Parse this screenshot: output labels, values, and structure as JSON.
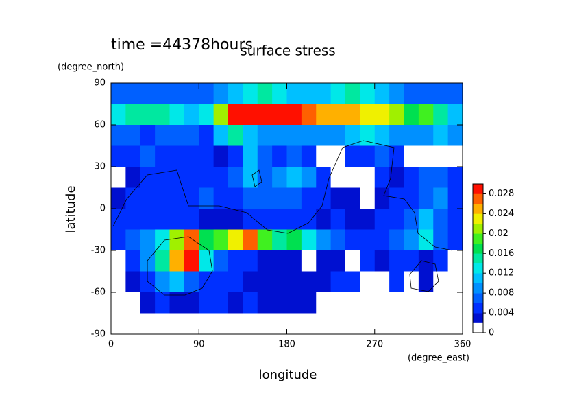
{
  "chart_data": {
    "type": "contour",
    "title": "surface stress",
    "subtitle": "time =44378hours",
    "x_label": "longitude",
    "x_unit": "(degree_east)",
    "y_label": "latitude",
    "y_unit": "(degree_north)",
    "x": [
      7.5,
      22.5,
      37.5,
      52.5,
      67.5,
      82.5,
      97.5,
      112.5,
      127.5,
      142.5,
      157.5,
      172.5,
      187.5,
      202.5,
      217.5,
      232.5,
      247.5,
      262.5,
      277.5,
      292.5,
      307.5,
      322.5,
      337.5,
      352.5
    ],
    "y": [
      82.5,
      67.5,
      52.5,
      37.5,
      22.5,
      7.5,
      -7.5,
      -22.5,
      -37.5,
      -52.5,
      -67.5,
      -82.5
    ],
    "z": [
      [
        0.006,
        0.007,
        0.007,
        0.007,
        0.007,
        0.007,
        0.007,
        0.008,
        0.01,
        0.012,
        0.014,
        0.012,
        0.01,
        0.01,
        0.01,
        0.012,
        0.014,
        0.012,
        0.01,
        0.008,
        0.007,
        0.007,
        0.006,
        0.006
      ],
      [
        0.012,
        0.014,
        0.014,
        0.014,
        0.012,
        0.01,
        0.012,
        0.02,
        0.03,
        0.032,
        0.032,
        0.03,
        0.028,
        0.026,
        0.024,
        0.024,
        0.024,
        0.022,
        0.022,
        0.02,
        0.016,
        0.018,
        0.014,
        0.01
      ],
      [
        0.006,
        0.006,
        0.005,
        0.006,
        0.006,
        0.006,
        0.005,
        0.01,
        0.014,
        0.01,
        0.008,
        0.008,
        0.008,
        0.008,
        0.008,
        0.009,
        0.01,
        0.012,
        0.01,
        0.008,
        0.008,
        0.008,
        0.01,
        0.008
      ],
      [
        0.005,
        0.005,
        0.006,
        0.005,
        0.004,
        0.004,
        0.004,
        0.003,
        0.004,
        0.01,
        0.006,
        0.005,
        0.006,
        0.004,
        0,
        0,
        0.004,
        0.004,
        0.006,
        0.004,
        0,
        0,
        0,
        0
      ],
      [
        0,
        0.003,
        0.004,
        0.005,
        0.005,
        0.005,
        0.004,
        0.005,
        0.006,
        0.01,
        0.006,
        0.008,
        0.01,
        0.008,
        0.004,
        0,
        0,
        0,
        0.004,
        0.003,
        0.004,
        0.006,
        0.006,
        0.004
      ],
      [
        0.003,
        0.004,
        0.004,
        0.004,
        0.005,
        0.005,
        0.006,
        0.005,
        0.005,
        0.006,
        0.007,
        0.007,
        0.006,
        0.005,
        0.004,
        0.003,
        0.003,
        0,
        0.002,
        0.004,
        0.005,
        0.006,
        0.008,
        0.005
      ],
      [
        0.004,
        0.004,
        0.004,
        0.004,
        0.005,
        0.004,
        0.003,
        0.002,
        0.003,
        0.004,
        0.005,
        0.005,
        0.005,
        0.005,
        0.003,
        0.004,
        0.003,
        0.003,
        0.004,
        0.004,
        0.006,
        0.01,
        0.006,
        0.004
      ],
      [
        0.004,
        0.006,
        0.008,
        0.012,
        0.02,
        0.026,
        0.016,
        0.018,
        0.022,
        0.026,
        0.018,
        0.014,
        0.016,
        0.012,
        0.008,
        0.006,
        0.004,
        0.004,
        0.005,
        0.006,
        0.008,
        0.012,
        0.006,
        0.004
      ],
      [
        0,
        0.004,
        0.008,
        0.014,
        0.024,
        0.03,
        0.012,
        0.006,
        0.004,
        0.004,
        0.003,
        0.003,
        0.002,
        0,
        0.003,
        0.003,
        0,
        0.004,
        0.003,
        0.004,
        0.004,
        0.003,
        0.004,
        0
      ],
      [
        0,
        0.002,
        0.004,
        0.008,
        0.01,
        0.006,
        0.005,
        0.004,
        0.004,
        0.003,
        0.003,
        0.002,
        0.003,
        0.003,
        0.003,
        0.004,
        0.004,
        0,
        0,
        0.004,
        0,
        0.003,
        0,
        0
      ],
      [
        0,
        0,
        0.003,
        0.004,
        0.003,
        0.003,
        0.004,
        0.004,
        0.003,
        0.004,
        0.003,
        0.003,
        0.003,
        0.002,
        0,
        0,
        0,
        0,
        0,
        0,
        0,
        0,
        0,
        0
      ],
      [
        0,
        0,
        0,
        0,
        0,
        0,
        0,
        0,
        0,
        0,
        0,
        0,
        0,
        0,
        0,
        0,
        0,
        0,
        0,
        0,
        0,
        0,
        0,
        0
      ]
    ],
    "xlim": [
      0,
      360
    ],
    "ylim": [
      -90,
      90
    ],
    "xticks": [
      0,
      90,
      180,
      270,
      360
    ],
    "yticks": [
      -90,
      -60,
      -30,
      0,
      30,
      60,
      90
    ],
    "clim": [
      0,
      0.03
    ],
    "cticks": [
      0,
      0.004,
      0.008,
      0.012,
      0.016,
      0.02,
      0.024,
      0.028
    ],
    "colors": [
      "#ffffff",
      "#0010d0",
      "#0030ff",
      "#0060ff",
      "#0090ff",
      "#00c0ff",
      "#00e8e8",
      "#00e8a0",
      "#00e050",
      "#40f020",
      "#a0f000",
      "#f0f000",
      "#ffb000",
      "#ff6000",
      "#ff1000"
    ]
  }
}
